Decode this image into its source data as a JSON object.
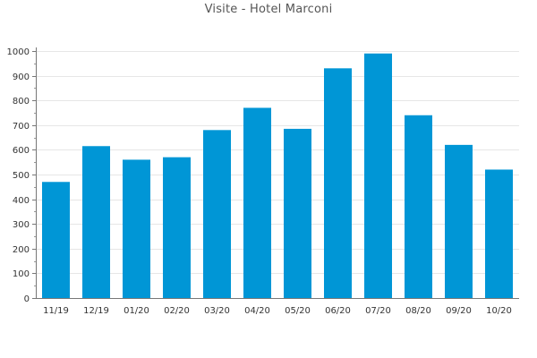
{
  "chart_data": {
    "type": "bar",
    "title": "Visite - Hotel Marconi",
    "xlabel": "",
    "ylabel": "",
    "categories": [
      "11/19",
      "12/19",
      "01/20",
      "02/20",
      "03/20",
      "04/20",
      "05/20",
      "06/20",
      "07/20",
      "08/20",
      "09/20",
      "10/20"
    ],
    "series": [
      {
        "name": "",
        "values": [
          470,
          615,
          560,
          570,
          680,
          770,
          685,
          930,
          990,
          740,
          620,
          520
        ],
        "color": "#0096d6"
      }
    ],
    "ylim": [
      0,
      1000
    ],
    "yticks": [
      0,
      100,
      200,
      300,
      400,
      500,
      600,
      700,
      800,
      900,
      1000
    ],
    "grid": true,
    "legend": "none"
  }
}
